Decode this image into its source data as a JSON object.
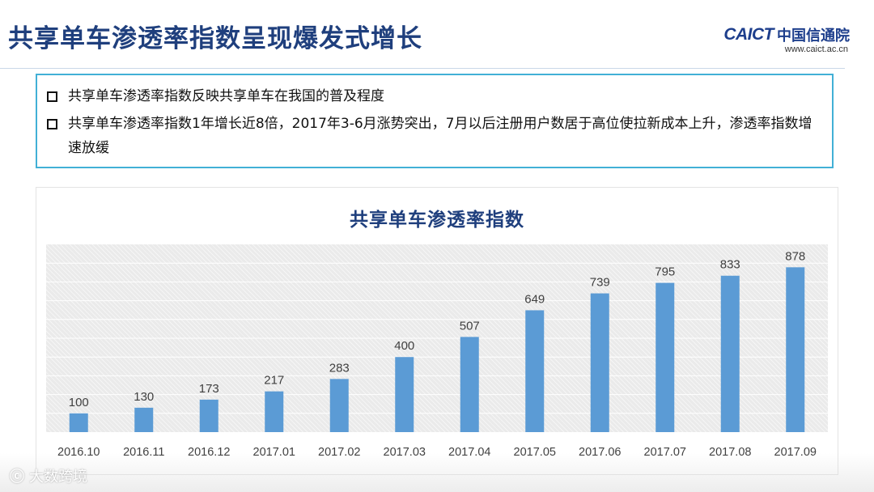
{
  "header": {
    "title": "共享单车渗透率指数呈现爆发式增长",
    "brand_en": "CAICT",
    "brand_cn": "中国信通院",
    "brand_url": "www.caict.ac.cn"
  },
  "info": {
    "bullets": [
      "共享单车渗透率指数反映共享单车在我国的普及程度",
      "共享单车渗透率指数1年增长近8倍，2017年3-6月涨势突出，7月以后注册用户数居于高位使拉新成本上升，渗透率指数增速放缓"
    ]
  },
  "chart_data": {
    "type": "bar",
    "title": "共享单车渗透率指数",
    "categories": [
      "2016.10",
      "2016.11",
      "2016.12",
      "2017.01",
      "2017.02",
      "2017.03",
      "2017.04",
      "2017.05",
      "2017.06",
      "2017.07",
      "2017.08",
      "2017.09"
    ],
    "values": [
      100,
      130,
      173,
      217,
      283,
      400,
      507,
      649,
      739,
      795,
      833,
      878
    ],
    "ylim": [
      0,
      1000
    ],
    "xlabel": "",
    "ylabel": "",
    "grid": true,
    "legend": "none",
    "bar_color": "#5b9bd5",
    "label_color": "#404040"
  },
  "watermark": {
    "logo": "大数跨境",
    "icon": "chat-bubble-logo-icon"
  }
}
